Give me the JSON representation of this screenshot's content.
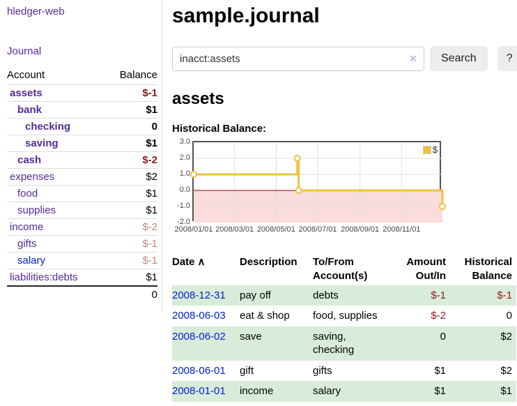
{
  "sidebar": {
    "app_title": "hledger-web",
    "journal_link": "Journal",
    "accounts": {
      "account_header": "Account",
      "balance_header": "Balance",
      "rows": [
        {
          "name": "assets",
          "balance": "$-1",
          "level": 1,
          "bold": true,
          "balance_color": "negative-strong"
        },
        {
          "name": "bank",
          "balance": "$1",
          "level": 2,
          "bold": true,
          "balance_color": "normal"
        },
        {
          "name": "checking",
          "balance": "0",
          "level": 3,
          "bold": true,
          "balance_color": "normal"
        },
        {
          "name": "saving",
          "balance": "$1",
          "level": 3,
          "bold": true,
          "balance_color": "normal"
        },
        {
          "name": "cash",
          "balance": "$-2",
          "level": 2,
          "bold": true,
          "balance_color": "negative-strong"
        },
        {
          "name": "expenses",
          "balance": "$2",
          "level": 1,
          "bold": false,
          "balance_color": "normal"
        },
        {
          "name": "food",
          "balance": "$1",
          "level": 2,
          "bold": false,
          "balance_color": "normal"
        },
        {
          "name": "supplies",
          "balance": "$1",
          "level": 2,
          "bold": false,
          "balance_color": "normal"
        },
        {
          "name": "income",
          "balance": "$-2",
          "level": 1,
          "bold": false,
          "balance_color": "negative-faded"
        },
        {
          "name": "gifts",
          "balance": "$-1",
          "level": 2,
          "bold": false,
          "balance_color": "negative-faded"
        },
        {
          "name": "salary",
          "balance": "$-1",
          "level": 2,
          "bold": false,
          "balance_color": "negative-faded",
          "link_color": "blue"
        },
        {
          "name": "liabilities:debts",
          "balance": "$1",
          "level": 1,
          "bold": false,
          "balance_color": "normal"
        }
      ],
      "total": "0"
    }
  },
  "main": {
    "title": "sample.journal",
    "search": {
      "value": "inacct:assets",
      "clear_icon": "✕",
      "button_label": "Search",
      "help_label": "?"
    },
    "account_heading": "assets",
    "chart_label": "Historical Balance:",
    "register": {
      "headers": {
        "date": "Date",
        "sort_icon": "∧",
        "description": "Description",
        "accounts_line1": "To/From",
        "accounts_line2": "Account(s)",
        "amount_line1": "Amount",
        "amount_line2": "Out/In",
        "balance_line1": "Historical",
        "balance_line2": "Balance"
      },
      "rows": [
        {
          "date": "2008-12-31",
          "description": "pay off",
          "accounts": "debts",
          "amount": "$-1",
          "balance": "$-1",
          "amount_negative": true,
          "balance_negative": true
        },
        {
          "date": "2008-06-03",
          "description": "eat & shop",
          "accounts": "food, supplies",
          "amount": "$-2",
          "balance": "0",
          "amount_negative": true,
          "balance_negative": false
        },
        {
          "date": "2008-06-02",
          "description": "save",
          "accounts": "saving, checking",
          "amount": "0",
          "balance": "$2",
          "amount_negative": false,
          "balance_negative": false
        },
        {
          "date": "2008-06-01",
          "description": "gift",
          "accounts": "gifts",
          "amount": "$1",
          "balance": "$2",
          "amount_negative": false,
          "balance_negative": false
        },
        {
          "date": "2008-01-01",
          "description": "income",
          "accounts": "salary",
          "amount": "$1",
          "balance": "$1",
          "amount_negative": false,
          "balance_negative": false
        }
      ]
    }
  },
  "chart_data": {
    "type": "line",
    "title": "Historical Balance:",
    "step": true,
    "legend": "$",
    "legend_position": "top-right",
    "x_range": [
      "2008-01-01",
      "2008-12-31"
    ],
    "ylim": [
      -2,
      3
    ],
    "y_ticks": [
      "3.0",
      "2.0",
      "1.0",
      "0.0",
      "-1.0",
      "-2.0"
    ],
    "x_ticks": [
      "2008/01/01",
      "2008/03/01",
      "2008/05/01",
      "2008/07/01",
      "2008/09/01",
      "2008/11/01"
    ],
    "series": [
      {
        "name": "$",
        "color": "#edc240",
        "points": [
          [
            "2008-01-01",
            1
          ],
          [
            "2008-06-01",
            2
          ],
          [
            "2008-06-03",
            0
          ],
          [
            "2008-12-31",
            -1
          ]
        ]
      }
    ],
    "zero_line_color": "#8b0000",
    "negative_fill": "#fbdcdc",
    "grid": true
  },
  "colors": {
    "link_purple": "#562a9c",
    "link_blue": "#0022cc",
    "negative_strong": "#8f1a1a",
    "negative_faded": "#c38382",
    "row_green": "#d9ecd9",
    "accent_gold": "#edc240"
  }
}
